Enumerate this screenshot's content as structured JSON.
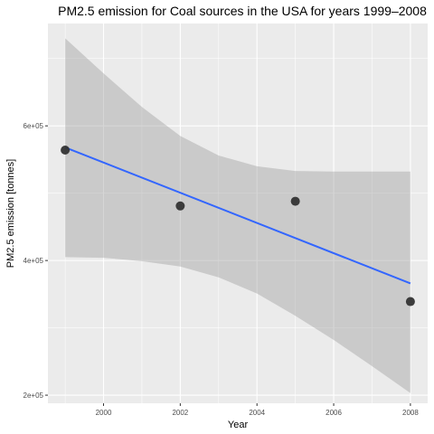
{
  "chart_data": {
    "type": "scatter",
    "title": "PM2.5 emission for Coal sources in the USA for years 1999–2008",
    "xlabel": "Year",
    "ylabel": "PM2.5 emission [tonnes]",
    "xlim": [
      1998.55,
      2008.45
    ],
    "ylim": [
      188000,
      752000
    ],
    "x_ticks": [
      2000,
      2002,
      2004,
      2006,
      2008
    ],
    "x_tick_labels": [
      "2000",
      "2002",
      "2004",
      "2006",
      "2008"
    ],
    "y_ticks": [
      200000,
      400000,
      600000
    ],
    "y_tick_labels": [
      "2e+05",
      "4e+05",
      "6e+05"
    ],
    "grid": true,
    "legend": "none",
    "series": [
      {
        "type": "scatter",
        "x": [
          1999,
          2002,
          2005,
          2008
        ],
        "y": [
          564000,
          481000,
          488000,
          339000
        ],
        "color": "#333333"
      },
      {
        "type": "line",
        "method": "linear fit",
        "x": [
          1999,
          2008
        ],
        "y": [
          568000,
          366000
        ],
        "color": "#3366FF"
      },
      {
        "type": "band",
        "label": "confidence interval",
        "x": [
          1999,
          2000,
          2001,
          2002,
          2003,
          2004,
          2005,
          2006,
          2007,
          2008
        ],
        "lower": [
          405000,
          404000,
          399000,
          391000,
          375000,
          351000,
          318000,
          282000,
          243000,
          203000
        ],
        "upper": [
          730000,
          678000,
          628000,
          585000,
          556000,
          540000,
          533000,
          532000,
          532000,
          532000
        ],
        "color": "#999999"
      }
    ]
  },
  "colors": {
    "panel_background": "#EBEBEB",
    "grid_major": "#FFFFFF",
    "trend_line": "#3366FF",
    "points": "#333333",
    "band_fill": "#999999"
  }
}
